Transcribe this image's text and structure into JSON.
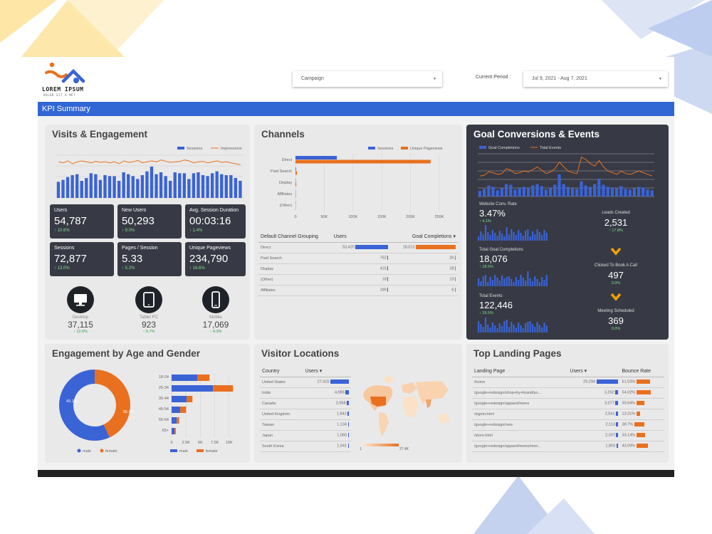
{
  "logo": {
    "name": "LOREM IPSUM",
    "tagline": "DOLOR SIT A MET"
  },
  "filters": {
    "campaign": "Campaign",
    "period_label": "Current Period :",
    "period_value": "Jul 9, 2021 - Aug 7, 2021"
  },
  "kpi_title": "KPI Summary",
  "colors": {
    "blue": "#3a63d6",
    "orange": "#e8701f",
    "dark": "#373a44",
    "green": "#2a9c47"
  },
  "visits": {
    "title": "Visits & Engagement",
    "legend": [
      "Sessions",
      "Impressions"
    ],
    "cards": [
      {
        "label": "Users",
        "value": "54,787",
        "change": "↑ 10.6%"
      },
      {
        "label": "New Users",
        "value": "50,293",
        "change": "↑ 9.0%"
      },
      {
        "label": "Avg. Session Duration",
        "value": "00:03:16",
        "change": "↑ 1.4%"
      },
      {
        "label": "Sessions",
        "value": "72,877",
        "change": "↑ 13.0%"
      },
      {
        "label": "Pages / Session",
        "value": "5.33",
        "change": "↑ 5.2%"
      },
      {
        "label": "Unique Pageviews",
        "value": "234,790",
        "change": "↑ 16.6%"
      }
    ],
    "devices": [
      {
        "label": "Desktop",
        "value": "37,115",
        "change": "↑ 12.6%",
        "icon": "desktop-icon"
      },
      {
        "label": "Tablet PC",
        "value": "923",
        "change": "↑ 6.7%",
        "icon": "tablet-icon"
      },
      {
        "label": "Mobile",
        "value": "17,069",
        "change": "↑ 4.3%",
        "icon": "mobile-icon"
      }
    ]
  },
  "channels": {
    "title": "Channels",
    "legend": [
      "Sessions",
      "Unique Pageviews"
    ],
    "table_headers": [
      "Default Channel Grouping",
      "Users",
      "Goal Completions ▾"
    ],
    "rows": [
      {
        "name": "Direct",
        "users": "53,420",
        "goals": "18,013",
        "uf": 1.0,
        "gf": 1.0
      },
      {
        "name": "Paid Search",
        "users": "752",
        "goals": "26",
        "uf": 0.014,
        "gf": 0.0015
      },
      {
        "name": "Display",
        "users": "415",
        "goals": "18",
        "uf": 0.008,
        "gf": 0.001
      },
      {
        "name": "(Other)",
        "users": "18",
        "goals": "13",
        "uf": 0.0003,
        "gf": 0.0007
      },
      {
        "name": "Affiliates",
        "users": "199",
        "goals": "6",
        "uf": 0.004,
        "gf": 0.0003
      }
    ]
  },
  "goals": {
    "title": "Goal Conversions & Events",
    "legend": [
      "Goal Completions",
      "Total Events"
    ],
    "metrics": [
      {
        "label": "Website Conv. Rate",
        "value": "3.47%",
        "change": "↑ 4.1%"
      },
      {
        "label": "Total Goal Completions",
        "value": "18,076",
        "change": "↑ 18.5%"
      },
      {
        "label": "Total Events",
        "value": "122,446",
        "change": "↑ 29.5%"
      }
    ],
    "funnel": [
      {
        "label": "Leads Created",
        "value": "2,531",
        "change": "↑ 17.8%"
      },
      {
        "label": "Clicked To Book A Call",
        "value": "497",
        "change": "0.0%"
      },
      {
        "label": "Meeting Scheduled",
        "value": "369",
        "change": "0.0%"
      }
    ]
  },
  "age_gender": {
    "title": "Engagement by Age and Gender",
    "donut_labels": [
      "56.9%",
      "43.1%"
    ],
    "legend": [
      "male",
      "female"
    ],
    "age_groups": [
      "18-24",
      "25-34",
      "35-44",
      "45-54",
      "55-64",
      "65+"
    ],
    "x_ticks": [
      "0",
      "2.5K",
      "5K",
      "7.5K",
      "10K"
    ]
  },
  "locations": {
    "title": "Visitor Locations",
    "headers": [
      "Country",
      "Users ▾"
    ],
    "rows": [
      {
        "name": "United States",
        "users": "27,415",
        "f": 1.0
      },
      {
        "name": "India",
        "users": "4,986",
        "f": 0.18
      },
      {
        "name": "Canada",
        "users": "2,958",
        "f": 0.11
      },
      {
        "name": "United Kingdom",
        "users": "1,843",
        "f": 0.067
      },
      {
        "name": "Taiwan",
        "users": "1,134",
        "f": 0.041
      },
      {
        "name": "Japan",
        "users": "1,060",
        "f": 0.039
      },
      {
        "name": "South Korea",
        "users": "1,041",
        "f": 0.038
      }
    ],
    "scale": [
      "1",
      "27.4K"
    ]
  },
  "landing": {
    "title": "Top Landing Pages",
    "headers": [
      "Landing Page",
      "Users ▾",
      "Bounce Rate"
    ],
    "rows": [
      {
        "page": "/home",
        "users": "29,294",
        "bounce": "51.53%",
        "uf": 1.0,
        "bf": 1.0
      },
      {
        "page": "/google+redesign/shop+by+brand/yo...",
        "users": "3,262",
        "bounce": "54.02%",
        "uf": 0.11,
        "bf": 1.05
      },
      {
        "page": "/google+redesign/apparel/mens",
        "users": "3,077",
        "bounce": "30.64%",
        "uf": 0.105,
        "bf": 0.6
      },
      {
        "page": "/signin.html",
        "users": "2,541",
        "bounce": "13.31%",
        "uf": 0.087,
        "bf": 0.26
      },
      {
        "page": "/google+redesign/new",
        "users": "2,113",
        "bounce": "38.7%",
        "uf": 0.072,
        "bf": 0.75
      },
      {
        "page": "/store.html",
        "users": "2,037",
        "bounce": "33.14%",
        "uf": 0.07,
        "bf": 0.64
      },
      {
        "page": "/google+redesign/apparel/mens/men...",
        "users": "1,803",
        "bounce": "43.09%",
        "uf": 0.062,
        "bf": 0.84
      }
    ]
  },
  "chart_data": [
    {
      "type": "bar",
      "series": [
        {
          "name": "Sessions",
          "values": [
            1700,
            1900,
            2200,
            2400,
            2500,
            1800,
            2100,
            2600,
            2500,
            1900,
            2400,
            2300,
            2300,
            1800,
            2700,
            2500,
            2300,
            2000,
            2400,
            2800,
            3300,
            2500,
            2700,
            2300,
            1800,
            2700,
            2600,
            2600,
            2000,
            2600,
            2700,
            2400,
            2300,
            2600,
            2800,
            2500,
            2400,
            2400,
            2100,
            1800
          ]
        }
      ],
      "line_series": [
        {
          "name": "Impressions",
          "values": [
            3800,
            3700,
            3900,
            3600,
            3800,
            3900,
            3800,
            3700,
            3850,
            3750,
            3800,
            3700,
            3800,
            3600,
            3900,
            3750,
            3800,
            3950,
            3700,
            3800,
            3900,
            3800,
            4000,
            3850,
            3750,
            3800,
            3850,
            4000,
            3900,
            3700,
            3800,
            3850,
            3700,
            3800,
            3900,
            3750,
            3800,
            3700,
            3600,
            3500
          ]
        }
      ]
    },
    {
      "type": "bar",
      "categories": [
        "Direct",
        "Paid Search",
        "Display",
        "Affiliates",
        "(Other)"
      ],
      "series": [
        {
          "name": "Sessions",
          "values": [
            72000,
            900,
            500,
            250,
            30
          ]
        },
        {
          "name": "Unique Pageviews",
          "values": [
            235000,
            2500,
            1400,
            700,
            90
          ]
        }
      ],
      "x_ticks": [
        "0",
        "50K",
        "100K",
        "150K",
        "200K",
        "250K"
      ],
      "xlim": [
        0,
        260000
      ]
    },
    {
      "type": "bar",
      "series": [
        {
          "name": "Goal Completions",
          "values": [
            400,
            550,
            800,
            700,
            450,
            600,
            900,
            850,
            500,
            600,
            700,
            650,
            800,
            900,
            750,
            500,
            650,
            850,
            1600,
            900,
            700,
            600,
            550,
            1100,
            800,
            700,
            900,
            1300,
            850,
            700,
            650,
            600,
            750,
            550,
            500,
            600,
            700,
            650,
            500,
            450
          ]
        }
      ],
      "line_series": [
        {
          "name": "Total Events",
          "values": [
            2500,
            2600,
            3000,
            2900,
            2700,
            2800,
            3400,
            3200,
            2800,
            2900,
            3100,
            3000,
            3300,
            3600,
            3200,
            2800,
            3000,
            3400,
            4200,
            3600,
            3100,
            2900,
            2800,
            4800,
            4500,
            4000,
            3700,
            4400,
            3600,
            3100,
            2900,
            2700,
            3100,
            2800,
            2700,
            2900,
            3100,
            2900,
            2700,
            2500
          ]
        }
      ]
    },
    {
      "type": "pie",
      "categories": [
        "male",
        "female"
      ],
      "values": [
        56.9,
        43.1
      ]
    },
    {
      "type": "bar",
      "categories": [
        "18-24",
        "25-34",
        "35-44",
        "45-54",
        "55-64",
        "65+"
      ],
      "series": [
        {
          "name": "male",
          "values": [
            4500,
            7200,
            2600,
            1500,
            900,
            500
          ]
        },
        {
          "name": "female",
          "values": [
            3500,
            5800,
            1700,
            1700,
            700,
            400
          ]
        }
      ],
      "xlim": [
        0,
        13000
      ]
    }
  ]
}
